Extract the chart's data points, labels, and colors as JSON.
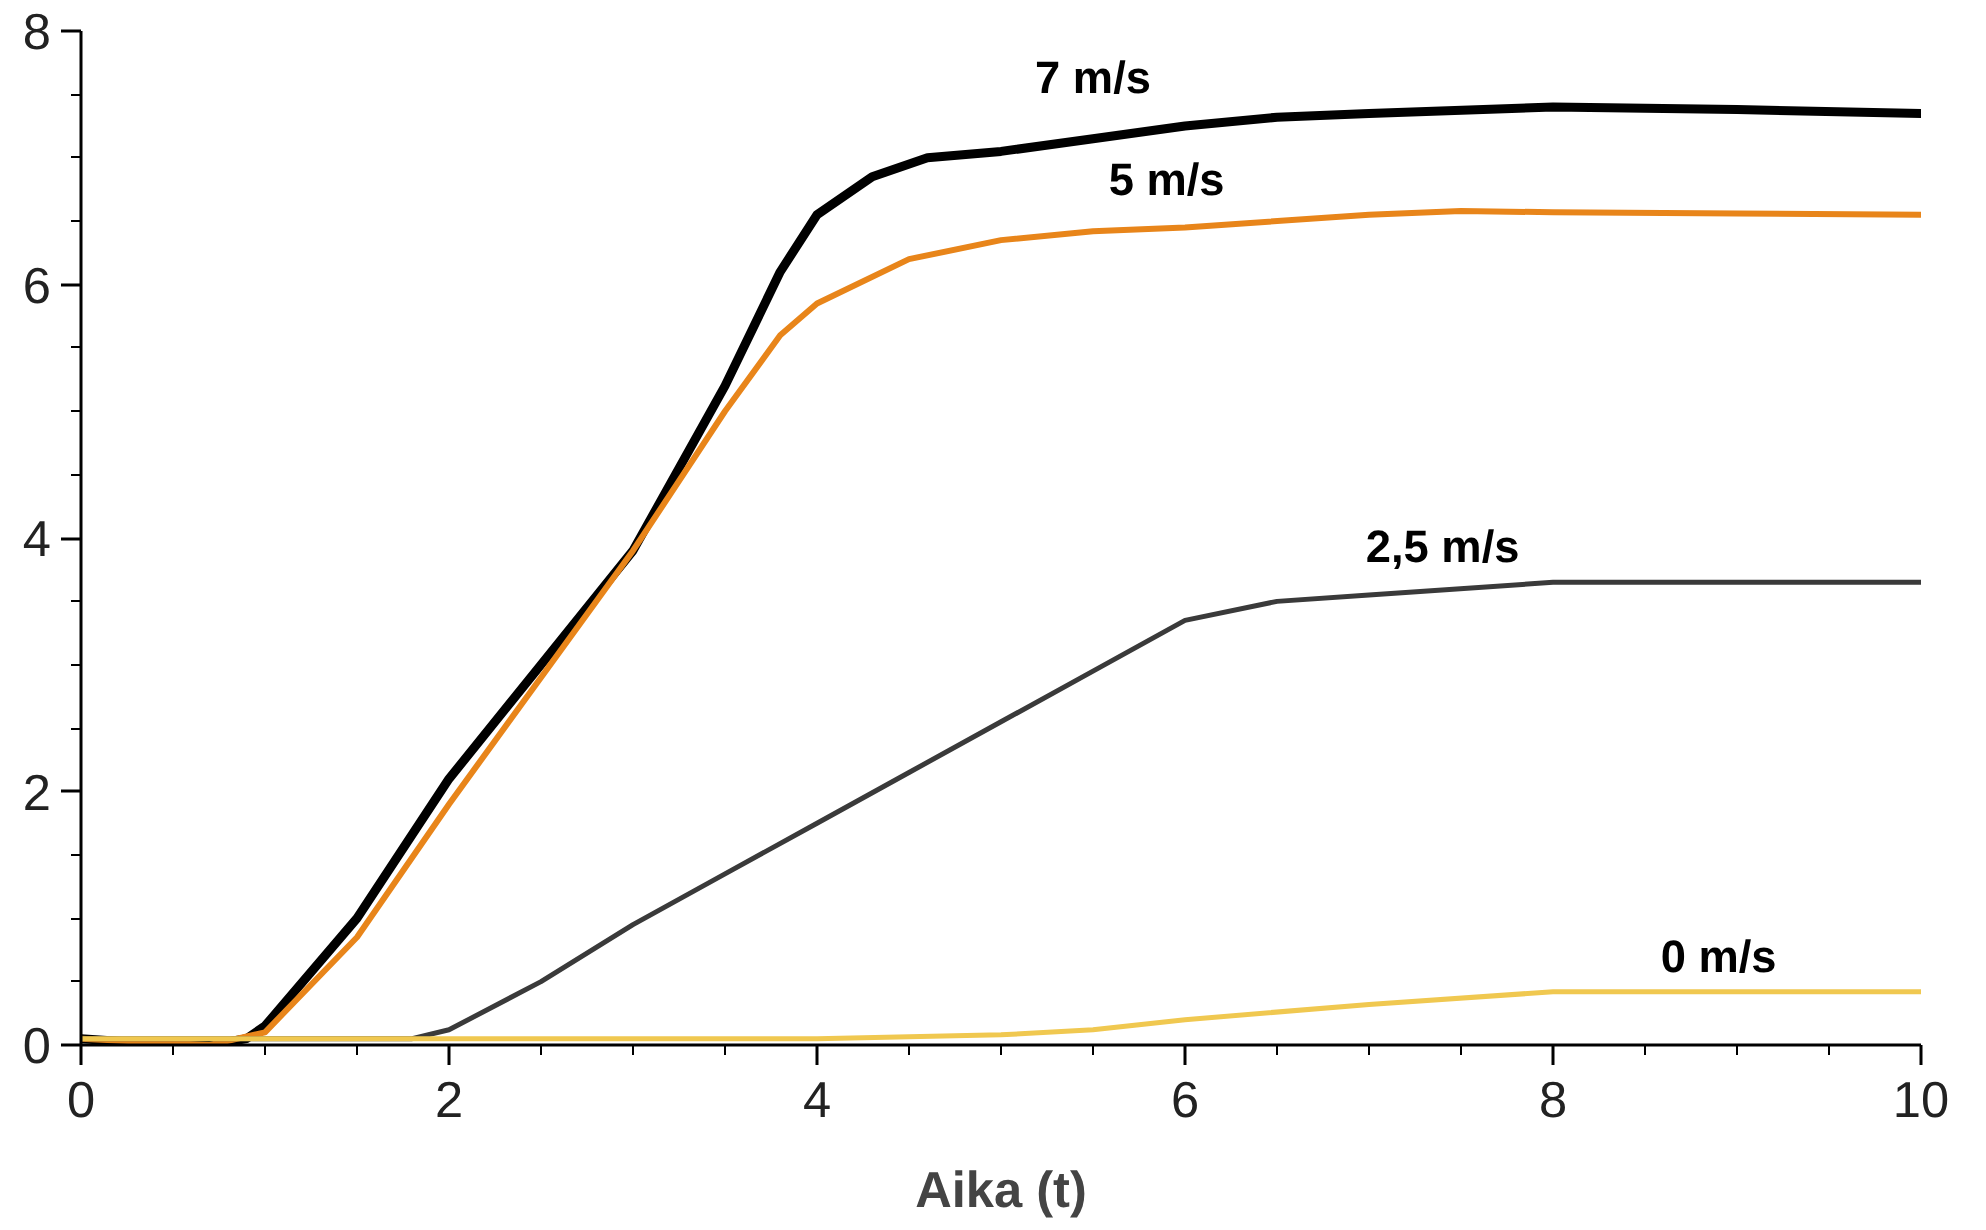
{
  "chart_data": {
    "type": "line",
    "xlabel": "Aika (t)",
    "xlim": [
      0,
      10
    ],
    "ylim": [
      0,
      8
    ],
    "xticks": [
      0,
      {
        "value": 0.5,
        "label": null
      },
      {
        "value": 1,
        "label": null
      },
      {
        "value": 1.5,
        "label": null
      },
      2,
      {
        "value": 2.5,
        "label": null
      },
      {
        "value": 3,
        "label": null
      },
      {
        "value": 3.5,
        "label": null
      },
      4,
      {
        "value": 4.5,
        "label": null
      },
      {
        "value": 5,
        "label": null
      },
      {
        "value": 5.5,
        "label": null
      },
      6,
      {
        "value": 6.5,
        "label": null
      },
      {
        "value": 7,
        "label": null
      },
      {
        "value": 7.5,
        "label": null
      },
      8,
      {
        "value": 8.5,
        "label": null
      },
      {
        "value": 9,
        "label": null
      },
      {
        "value": 9.5,
        "label": null
      },
      10
    ],
    "yticks": [
      0,
      {
        "value": 0.5,
        "label": null
      },
      {
        "value": 1,
        "label": null
      },
      {
        "value": 1.5,
        "label": null
      },
      2,
      {
        "value": 2.5,
        "label": null
      },
      {
        "value": 3,
        "label": null
      },
      {
        "value": 3.5,
        "label": null
      },
      4,
      {
        "value": 4.5,
        "label": null
      },
      {
        "value": 5,
        "label": null
      },
      {
        "value": 5.5,
        "label": null
      },
      6,
      {
        "value": 6.5,
        "label": null
      },
      {
        "value": 7,
        "label": null
      },
      {
        "value": 7.5,
        "label": null
      },
      8
    ],
    "grid": false,
    "legend": false,
    "marker": "none",
    "line_style": "solid",
    "series": [
      {
        "name": "7 m/s",
        "color": "#000000",
        "x": [
          0,
          0.5,
          0.7,
          0.9,
          1.0,
          1.5,
          2,
          2.5,
          3,
          3.5,
          3.8,
          4,
          4.3,
          4.6,
          5,
          5.5,
          6,
          6.5,
          7,
          8,
          9,
          10
        ],
        "values": [
          0.05,
          0,
          0,
          0.05,
          0.15,
          1.0,
          2.1,
          3.0,
          3.9,
          5.2,
          6.1,
          6.55,
          6.85,
          7.0,
          7.05,
          7.15,
          7.25,
          7.32,
          7.35,
          7.4,
          7.38,
          7.35
        ]
      },
      {
        "name": "5 m/s",
        "color": "#e8851a",
        "x": [
          0,
          0.7,
          1,
          1.5,
          2,
          2.5,
          3,
          3.5,
          3.8,
          4,
          4.5,
          5,
          5.5,
          6,
          7,
          7.5,
          8,
          9,
          10
        ],
        "values": [
          0.05,
          0,
          0.1,
          0.85,
          1.9,
          2.9,
          3.9,
          5.0,
          5.6,
          5.85,
          6.2,
          6.35,
          6.42,
          6.45,
          6.55,
          6.58,
          6.57,
          6.56,
          6.55
        ]
      },
      {
        "name": "2,5 m/s",
        "color": "#3a3a3a",
        "x": [
          0,
          1.8,
          2,
          2.5,
          3,
          3.5,
          4,
          4.5,
          5,
          5.5,
          6,
          6.5,
          7,
          8,
          9,
          10
        ],
        "values": [
          0.05,
          0.05,
          0.12,
          0.5,
          0.95,
          1.35,
          1.75,
          2.15,
          2.55,
          2.95,
          3.35,
          3.5,
          3.55,
          3.65,
          3.65,
          3.65
        ]
      },
      {
        "name": "0 m/s",
        "color": "#f0c850",
        "x": [
          0,
          2,
          4,
          5,
          5.5,
          6,
          7,
          8,
          9,
          10
        ],
        "values": [
          0.05,
          0.05,
          0.05,
          0.08,
          0.12,
          0.2,
          0.32,
          0.42,
          0.42,
          0.42
        ]
      }
    ]
  }
}
